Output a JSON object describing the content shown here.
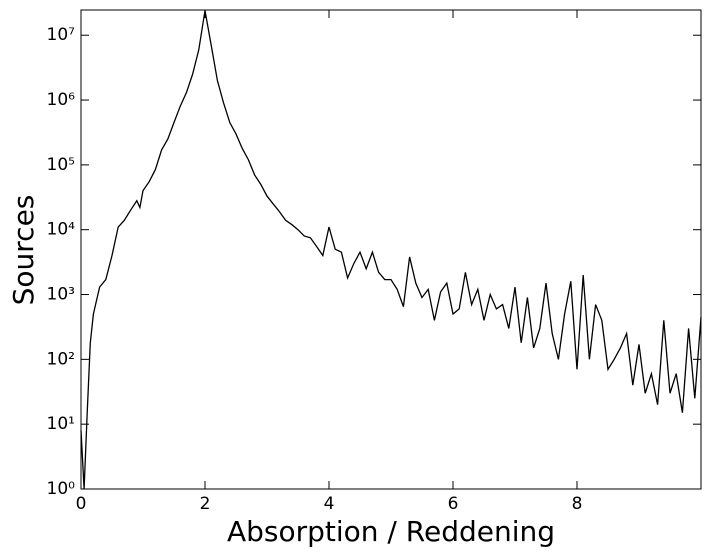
{
  "chart_data": {
    "type": "line",
    "x_label": "Absorption / Reddening",
    "y_label": "Sources",
    "x": [
      0,
      0.05,
      0.1,
      0.15,
      0.2,
      0.3,
      0.4,
      0.5,
      0.6,
      0.7,
      0.8,
      0.9,
      0.95,
      1.0,
      1.1,
      1.2,
      1.3,
      1.4,
      1.5,
      1.6,
      1.7,
      1.8,
      1.9,
      2.0,
      2.1,
      2.2,
      2.3,
      2.4,
      2.5,
      2.6,
      2.7,
      2.8,
      2.9,
      3.0,
      3.1,
      3.2,
      3.3,
      3.4,
      3.5,
      3.6,
      3.7,
      3.8,
      3.9,
      4.0,
      4.1,
      4.2,
      4.3,
      4.4,
      4.5,
      4.6,
      4.7,
      4.8,
      4.9,
      5.0,
      5.1,
      5.2,
      5.3,
      5.4,
      5.5,
      5.6,
      5.7,
      5.8,
      5.9,
      6.0,
      6.1,
      6.2,
      6.3,
      6.4,
      6.5,
      6.6,
      6.7,
      6.8,
      6.9,
      7.0,
      7.1,
      7.2,
      7.3,
      7.4,
      7.5,
      7.6,
      7.7,
      7.8,
      7.9,
      8.0,
      8.1,
      8.2,
      8.3,
      8.4,
      8.5,
      8.6,
      8.7,
      8.8,
      8.9,
      9.0,
      9.1,
      9.2,
      9.3,
      9.4,
      9.5,
      9.6,
      9.7,
      9.8,
      9.9,
      10.0
    ],
    "values": [
      8,
      1,
      15,
      180,
      500,
      1300,
      1700,
      4000,
      11000,
      14000,
      20000,
      28000,
      22000,
      40000,
      55000,
      85000,
      170000,
      250000,
      450000,
      800000,
      1300000,
      2500000,
      6000000,
      24000000,
      7000000,
      2000000,
      900000,
      450000,
      300000,
      180000,
      120000,
      70000,
      50000,
      33000,
      25000,
      19000,
      14000,
      12000,
      10000,
      8000,
      7500,
      5500,
      4000,
      11000,
      5000,
      4500,
      1800,
      3000,
      4500,
      2500,
      4500,
      2200,
      1700,
      1700,
      1200,
      650,
      3800,
      1500,
      900,
      1200,
      400,
      1100,
      1500,
      500,
      600,
      2200,
      700,
      1200,
      400,
      1000,
      600,
      700,
      300,
      1300,
      180,
      900,
      150,
      300,
      1500,
      250,
      100,
      500,
      1600,
      70,
      2000,
      100,
      700,
      400,
      70,
      100,
      150,
      250,
      40,
      170,
      30,
      60,
      20,
      400,
      30,
      60,
      15,
      300,
      25,
      450
    ],
    "color": "#000000",
    "log_y": true,
    "xlim": [
      0,
      10
    ],
    "xticks": [
      0,
      2,
      4,
      6,
      8
    ],
    "ylim": [
      1,
      24500000
    ],
    "yticks": [
      {
        "value": 1,
        "label": "10⁰"
      },
      {
        "value": 10,
        "label": "10¹"
      },
      {
        "value": 100,
        "label": "10²"
      },
      {
        "value": 1000,
        "label": "10³"
      },
      {
        "value": 10000,
        "label": "10⁴"
      },
      {
        "value": 100000,
        "label": "10⁵"
      },
      {
        "value": 1000000,
        "label": "10⁶"
      },
      {
        "value": 10000000,
        "label": "10⁷"
      }
    ]
  }
}
